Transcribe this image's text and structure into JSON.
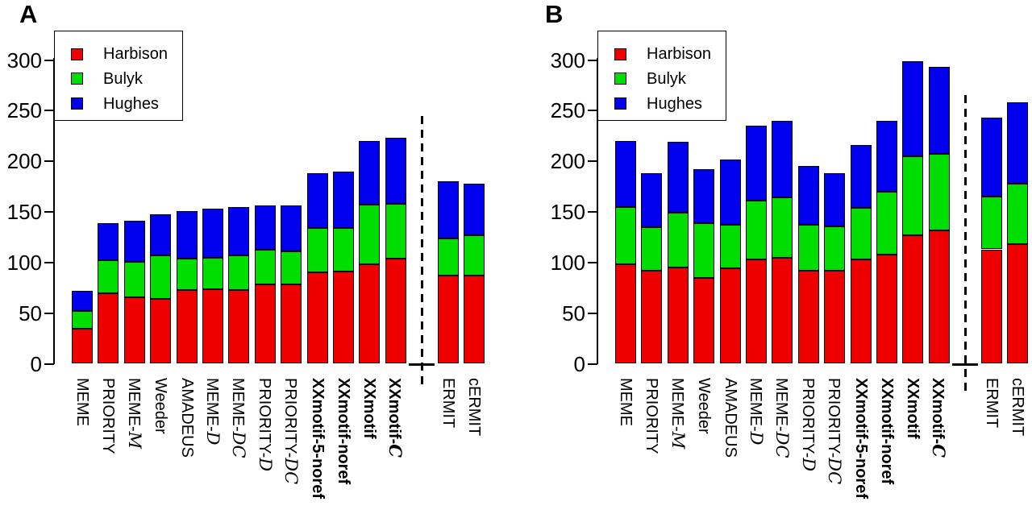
{
  "chart_data": [
    {
      "panel_label": "A",
      "type": "bar",
      "stacked": true,
      "grid": false,
      "legend_position": "top-left",
      "ylim": [
        0,
        330
      ],
      "yticks": [
        "0",
        "50",
        "100",
        "150",
        "200",
        "250",
        "300"
      ],
      "categories": [
        {
          "text": "MEME",
          "script": "",
          "bold": false
        },
        {
          "text": "PRIORITY",
          "script": "",
          "bold": false
        },
        {
          "text": "MEME-",
          "script": "M",
          "bold": false
        },
        {
          "text": "Weeder",
          "script": "",
          "bold": false
        },
        {
          "text": "AMADEUS",
          "script": "",
          "bold": false
        },
        {
          "text": "MEME-",
          "script": "D",
          "bold": false
        },
        {
          "text": "MEME-",
          "script": "DC",
          "bold": false
        },
        {
          "text": "PRIORITY-",
          "script": "D",
          "bold": false
        },
        {
          "text": "PRIORITY-",
          "script": "DC",
          "bold": false
        },
        {
          "text": "XXmotif-5-noref",
          "script": "",
          "bold": true
        },
        {
          "text": "XXmotif-noref",
          "script": "",
          "bold": true
        },
        {
          "text": "XXmotif",
          "script": "",
          "bold": true
        },
        {
          "text": "XXmotif-",
          "script": "C",
          "bold": true
        },
        {
          "text": "ERMIT",
          "script": "",
          "bold": false
        },
        {
          "text": "cERMIT",
          "script": "",
          "bold": false
        }
      ],
      "separator_after": "XXmotif-C",
      "series": [
        {
          "name": "Harbison",
          "color": "#ee0000",
          "values": [
            35,
            70,
            66,
            64,
            73,
            74,
            73,
            78,
            78,
            90,
            91,
            98,
            104,
            87,
            87
          ]
        },
        {
          "name": "Bulyk",
          "color": "#00dd00",
          "values": [
            17,
            32,
            35,
            43,
            31,
            31,
            34,
            35,
            33,
            44,
            43,
            59,
            54,
            37,
            40
          ]
        },
        {
          "name": "Hughes",
          "color": "#0000ee",
          "values": [
            20,
            37,
            40,
            41,
            47,
            48,
            48,
            43,
            45,
            54,
            56,
            63,
            65,
            56,
            51
          ]
        }
      ],
      "totals": [
        72,
        139,
        141,
        148,
        151,
        153,
        155,
        156,
        156,
        188,
        190,
        220,
        223,
        180,
        178
      ]
    },
    {
      "panel_label": "B",
      "type": "bar",
      "stacked": true,
      "grid": false,
      "legend_position": "top-left",
      "ylim": [
        0,
        330
      ],
      "yticks": [
        "0",
        "50",
        "100",
        "150",
        "200",
        "250",
        "300"
      ],
      "categories": [
        {
          "text": "MEME",
          "script": "",
          "bold": false
        },
        {
          "text": "PRIORITY",
          "script": "",
          "bold": false
        },
        {
          "text": "MEME-",
          "script": "M",
          "bold": false
        },
        {
          "text": "Weeder",
          "script": "",
          "bold": false
        },
        {
          "text": "AMADEUS",
          "script": "",
          "bold": false
        },
        {
          "text": "MEME-",
          "script": "D",
          "bold": false
        },
        {
          "text": "MEME-",
          "script": "DC",
          "bold": false
        },
        {
          "text": "PRIORITY-",
          "script": "D",
          "bold": false
        },
        {
          "text": "PRIORITY-",
          "script": "DC",
          "bold": false
        },
        {
          "text": "XXmotif-5-noref",
          "script": "",
          "bold": true
        },
        {
          "text": "XXmotif-noref",
          "script": "",
          "bold": true
        },
        {
          "text": "XXmotif",
          "script": "",
          "bold": true
        },
        {
          "text": "XXmotif-",
          "script": "C",
          "bold": true
        },
        {
          "text": "ERMIT",
          "script": "",
          "bold": false
        },
        {
          "text": "cERMIT",
          "script": "",
          "bold": false
        }
      ],
      "separator_after": "XXmotif-C",
      "series": [
        {
          "name": "Harbison",
          "color": "#ee0000",
          "values": [
            98,
            92,
            95,
            85,
            94,
            103,
            105,
            92,
            92,
            103,
            108,
            127,
            132,
            113,
            118
          ]
        },
        {
          "name": "Bulyk",
          "color": "#00dd00",
          "values": [
            57,
            43,
            54,
            54,
            43,
            58,
            59,
            45,
            44,
            51,
            62,
            78,
            75,
            52,
            60
          ]
        },
        {
          "name": "Hughes",
          "color": "#0000ee",
          "values": [
            65,
            53,
            70,
            53,
            65,
            74,
            76,
            58,
            52,
            62,
            70,
            94,
            86,
            78,
            80
          ]
        }
      ],
      "totals": [
        220,
        188,
        219,
        192,
        202,
        235,
        240,
        195,
        188,
        216,
        240,
        299,
        293,
        243,
        258
      ]
    }
  ],
  "legend": {
    "entries": [
      {
        "name": "Harbison",
        "color": "#ee0000"
      },
      {
        "name": "Bulyk",
        "color": "#00dd00"
      },
      {
        "name": "Hughes",
        "color": "#0000ee"
      }
    ]
  }
}
